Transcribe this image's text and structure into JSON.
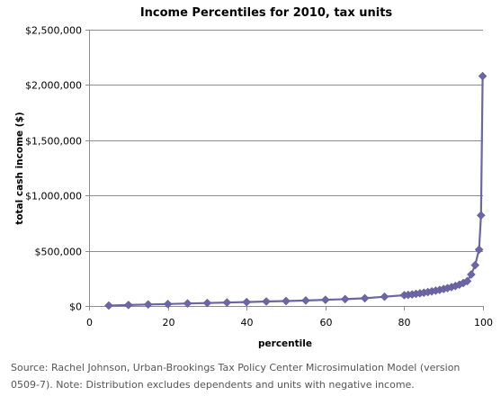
{
  "chart_data": {
    "type": "line",
    "title": "Income Percentiles for 2010, tax units",
    "xlabel": "percentile",
    "ylabel": "total cash income ($)",
    "xlim": [
      0,
      100
    ],
    "ylim": [
      0,
      2500000
    ],
    "x_ticks": [
      0,
      20,
      40,
      60,
      80,
      100
    ],
    "y_ticks": [
      0,
      500000,
      1000000,
      1500000,
      2000000,
      2500000
    ],
    "x_tick_labels": [
      "0",
      "20",
      "40",
      "60",
      "80",
      "100"
    ],
    "y_tick_labels": [
      "$0",
      "$500,000",
      "$1,000,000",
      "$1,500,000",
      "$2,000,000",
      "$2,500,000"
    ],
    "grid": "horizontal",
    "legend": "none",
    "series_color": "#6b66a6",
    "marker": "diamond",
    "series": [
      {
        "x": [
          5,
          10,
          15,
          20,
          25,
          30,
          35,
          40,
          45,
          50,
          55,
          60,
          65,
          70,
          75,
          80,
          81,
          82,
          83,
          84,
          85,
          86,
          87,
          88,
          89,
          90,
          91,
          92,
          93,
          94,
          95,
          96,
          97,
          98,
          99,
          99.5,
          99.9
        ],
        "y": [
          4000,
          9000,
          14000,
          18000,
          23000,
          27000,
          32000,
          36000,
          41000,
          45000,
          50000,
          56000,
          62000,
          70000,
          84000,
          98000,
          101000,
          105000,
          110000,
          115000,
          120000,
          126000,
          132000,
          139000,
          146000,
          154000,
          162000,
          171000,
          181000,
          193000,
          208000,
          225000,
          285000,
          370000,
          510000,
          820000,
          2080000
        ]
      }
    ]
  },
  "source_note": "Source: Rachel Johnson, Urban-Brookings Tax Policy Center Microsimulation Model (version 0509-7). Note: Distribution excludes dependents and units with negative income."
}
